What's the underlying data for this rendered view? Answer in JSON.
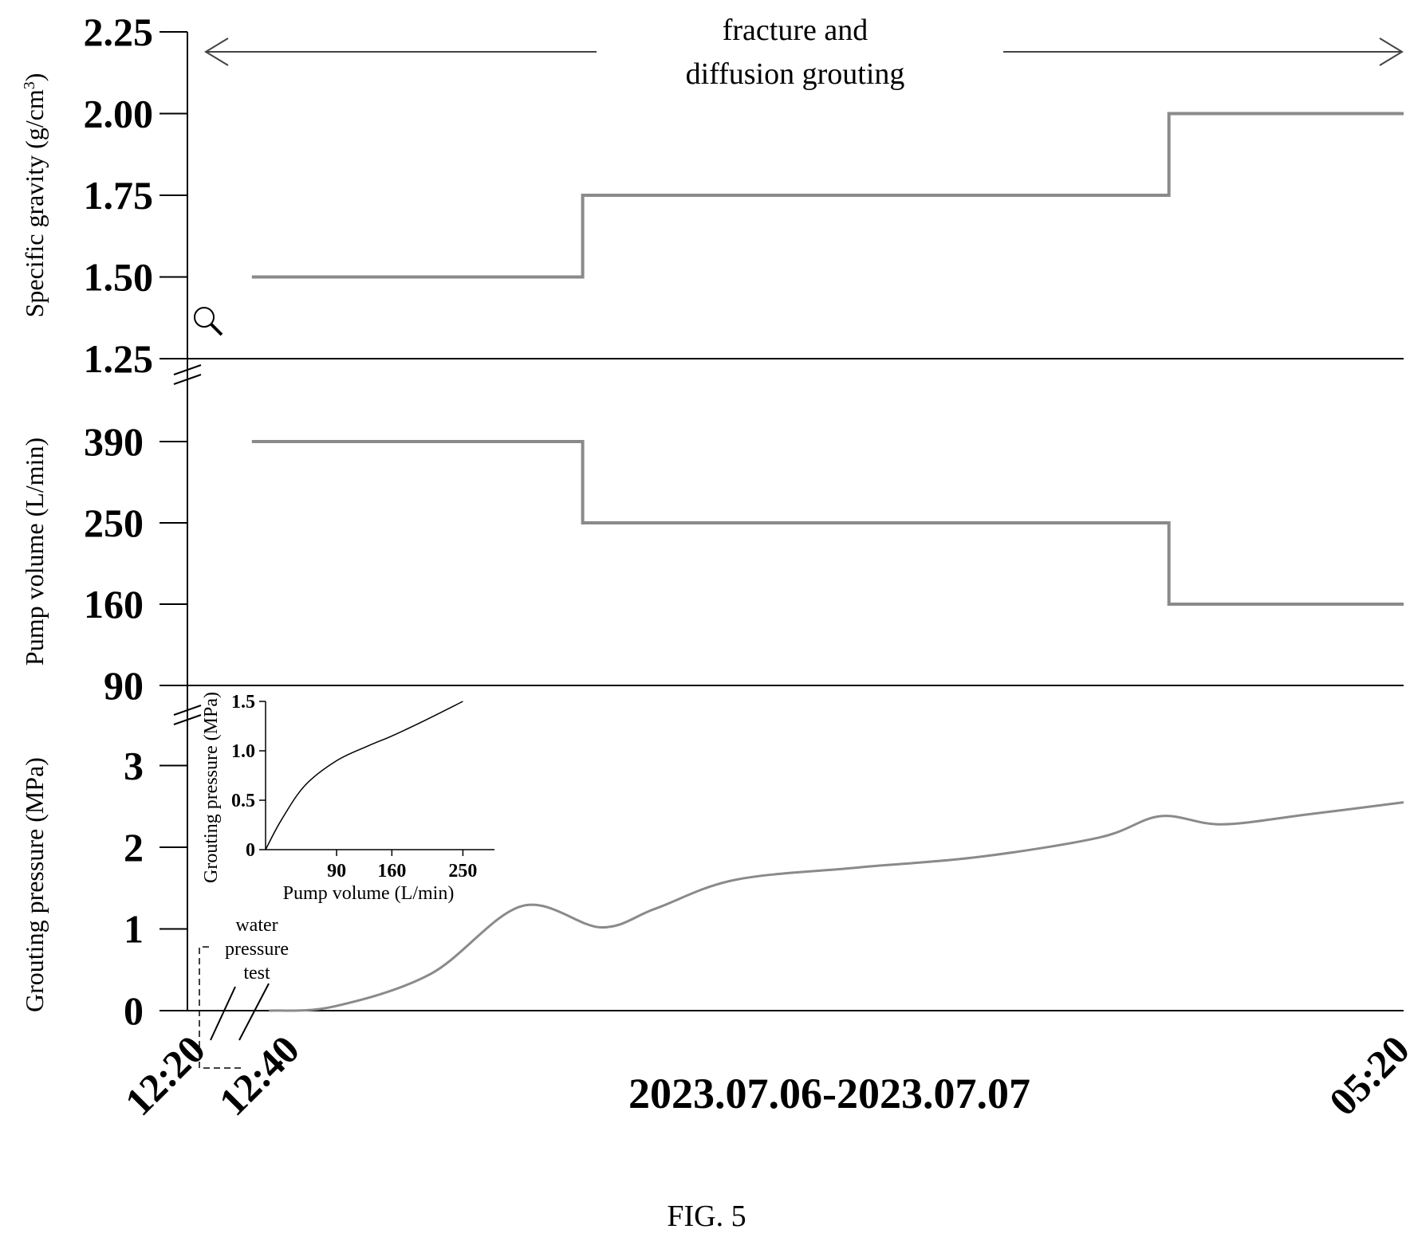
{
  "figure": {
    "caption": "FIG. 5",
    "date_range_label": "2023.07.06-2023.07.07",
    "annotation_top_line1": "fracture and",
    "annotation_top_line2": "diffusion grouting",
    "annotation_water_line1": "water",
    "annotation_water_line2": "pressure",
    "annotation_water_line3": "test",
    "zoom_icon": "magnifier-icon",
    "line_color": "#8a8a8a",
    "axis_color": "#000000"
  },
  "chart_data": [
    {
      "id": "specific-gravity",
      "type": "line",
      "ylabel": "Specific gravity (g/cm³)",
      "ylabel_main": "Specific gravity (g/cm",
      "ylabel_sup": "3",
      "ylabel_tail": ")",
      "yticks": [
        "1.25",
        "1.50",
        "1.75",
        "2.00",
        "2.25"
      ],
      "ylim": [
        1.25,
        2.25
      ],
      "series": [
        {
          "x": [
            0.053,
            0.325,
            0.325,
            0.807,
            0.807,
            1.0
          ],
          "y": [
            1.5,
            1.5,
            1.75,
            1.75,
            2.0,
            2.0
          ]
        }
      ]
    },
    {
      "id": "pump-volume",
      "type": "line",
      "ylabel": "Pump volume (L/min)",
      "yticks": [
        "90",
        "160",
        "250",
        "390"
      ],
      "ytick_slots": [
        0,
        1,
        2,
        3
      ],
      "series": [
        {
          "x_slot": [
            0.053,
            0.325,
            0.325,
            0.807,
            0.807,
            1.0
          ],
          "y_slot": [
            3,
            3,
            2,
            2,
            1,
            1
          ]
        }
      ]
    },
    {
      "id": "grouting-pressure",
      "type": "line",
      "ylabel": "Grouting pressure (MPa)",
      "yticks": [
        "0",
        "1",
        "2",
        "3"
      ],
      "ylim": [
        0,
        3.5
      ],
      "xticks": [
        "12:20",
        "12:40",
        "05:20"
      ],
      "series": [
        {
          "x": [
            0.067,
            0.12,
            0.2,
            0.275,
            0.34,
            0.385,
            0.45,
            0.55,
            0.65,
            0.75,
            0.8,
            0.85,
            0.92,
            1.0
          ],
          "y": [
            0.0,
            0.05,
            0.45,
            1.28,
            1.02,
            1.25,
            1.6,
            1.75,
            1.88,
            2.12,
            2.38,
            2.28,
            2.4,
            2.55
          ]
        }
      ]
    },
    {
      "id": "inset",
      "type": "line",
      "xlabel": "Pump volume (L/min)",
      "ylabel": "Grouting pressure (MPa)",
      "xticks": [
        "90",
        "160",
        "250"
      ],
      "yticks": [
        "0",
        "0.5",
        "1.0",
        "1.5"
      ],
      "xlim": [
        0,
        290
      ],
      "ylim": [
        0,
        1.5
      ],
      "series": [
        {
          "x": [
            0,
            20,
            50,
            90,
            130,
            160,
            200,
            250
          ],
          "y": [
            0,
            0.3,
            0.65,
            0.9,
            1.05,
            1.15,
            1.3,
            1.5
          ]
        }
      ]
    }
  ]
}
